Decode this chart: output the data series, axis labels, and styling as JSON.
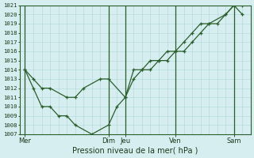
{
  "xlabel": "Pression niveau de la mer( hPa )",
  "ylim": [
    1007,
    1021
  ],
  "yticks": [
    1007,
    1008,
    1009,
    1010,
    1011,
    1012,
    1013,
    1014,
    1015,
    1016,
    1017,
    1018,
    1019,
    1020,
    1021
  ],
  "bg_color": "#d6eef0",
  "grid_color": "#b8dde0",
  "vgrid_color": "#b0d4d8",
  "line_color": "#2a5e2a",
  "xtick_labels": [
    "Mer",
    "Dim",
    "Jeu",
    "Ven",
    "Sam"
  ],
  "xtick_positions": [
    0,
    5.0,
    6.0,
    9.0,
    12.5
  ],
  "vline_positions": [
    0,
    5.0,
    6.0,
    9.0,
    12.5
  ],
  "xmax": 13.5,
  "line1_x": [
    0,
    0.5,
    1.0,
    1.5,
    2.5,
    3.0,
    3.5,
    4.5,
    5.0,
    6.0,
    6.5,
    7.0,
    7.5,
    8.0,
    8.5,
    9.0,
    9.5,
    10.0,
    10.5,
    11.0,
    11.5,
    12.0,
    12.5,
    13.0
  ],
  "line1_y": [
    1014,
    1013,
    1012,
    1012,
    1011,
    1011,
    1012,
    1013,
    1013,
    1011,
    1013,
    1014,
    1014,
    1015,
    1015,
    1016,
    1016,
    1017,
    1018,
    1019,
    1019,
    1020,
    1021,
    1021
  ],
  "line2_x": [
    0,
    0.5,
    1.0,
    1.5,
    2.0,
    2.5,
    3.0,
    4.0,
    5.0,
    5.5,
    6.0,
    6.5,
    7.0,
    7.5,
    8.0,
    8.5,
    9.0,
    9.5,
    10.0,
    10.5,
    11.0,
    12.0,
    12.5,
    13.0
  ],
  "line2_y": [
    1014,
    1012,
    1010,
    1010,
    1009,
    1009,
    1008,
    1007,
    1008,
    1010,
    1011,
    1014,
    1014,
    1015,
    1015,
    1016,
    1016,
    1017,
    1018,
    1019,
    1019,
    1020,
    1021,
    1020
  ]
}
